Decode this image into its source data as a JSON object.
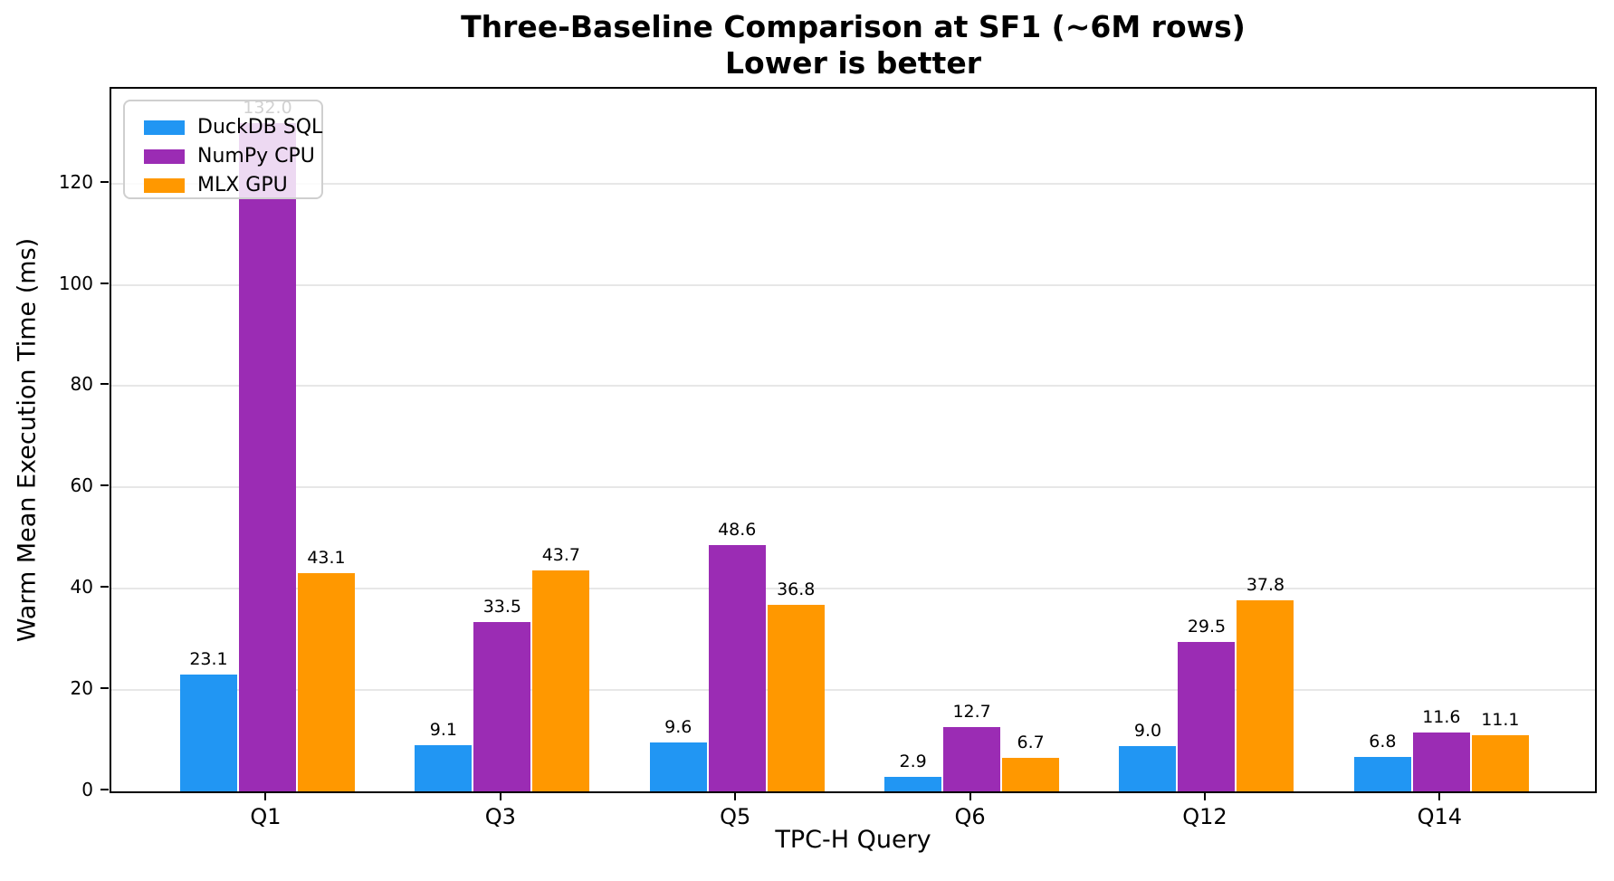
{
  "figure": {
    "title_line1": "Three-Baseline Comparison at SF1 (~6M rows)",
    "title_line2": "Lower is better"
  },
  "chart_data": {
    "type": "bar",
    "title": "Three-Baseline Comparison at SF1 (~6M rows)\nLower is better",
    "xlabel": "TPC-H Query",
    "ylabel": "Warm Mean Execution Time (ms)",
    "categories": [
      "Q1",
      "Q3",
      "Q5",
      "Q6",
      "Q12",
      "Q14"
    ],
    "series": [
      {
        "name": "DuckDB SQL",
        "color": "#2196F3",
        "values": [
          23.1,
          9.1,
          9.6,
          2.9,
          9.0,
          6.8
        ]
      },
      {
        "name": "NumPy CPU",
        "color": "#9B2CB4",
        "values": [
          132.0,
          33.5,
          48.6,
          12.7,
          29.5,
          11.6
        ]
      },
      {
        "name": "MLX GPU",
        "color": "#FF9800",
        "values": [
          43.1,
          43.7,
          36.8,
          6.7,
          37.8,
          11.1
        ]
      }
    ],
    "yticks": [
      0,
      20,
      40,
      60,
      80,
      100,
      120
    ],
    "ylim": [
      0,
      138.7
    ],
    "grid": true,
    "grid_color": "#e7e7e7",
    "legend_position": "upper-left",
    "value_label_decimals": 1
  }
}
